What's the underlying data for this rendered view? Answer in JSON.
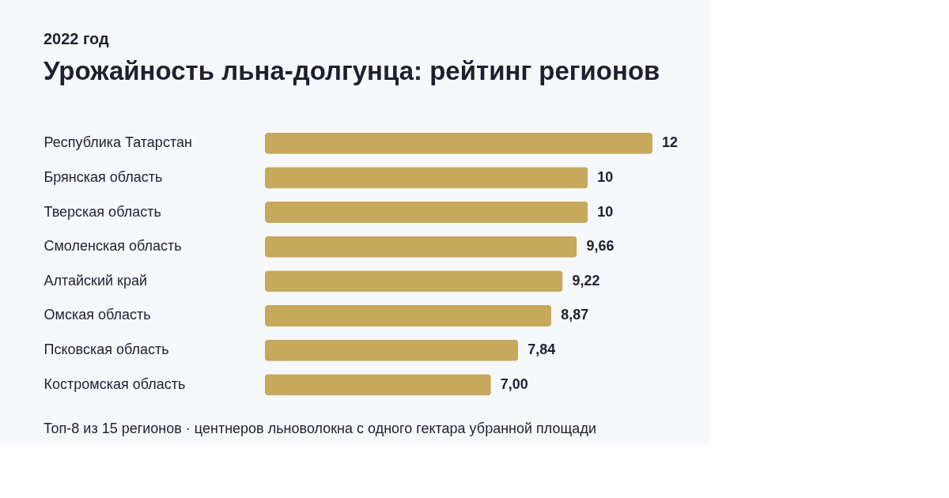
{
  "chart_data": {
    "type": "bar",
    "orientation": "horizontal",
    "title": "Урожайность льна-долгунца: рейтинг регионов",
    "subtitle": "2022 год",
    "categories": [
      "Республика Татарстан",
      "Брянская область",
      "Тверская область",
      "Смоленская область",
      "Алтайский край",
      "Омская область",
      "Псковская область",
      "Костромская область"
    ],
    "values": [
      12,
      10,
      10,
      9.66,
      9.22,
      8.87,
      7.84,
      7.0
    ],
    "value_labels": [
      "12",
      "10",
      "10",
      "9,66",
      "9,22",
      "8,87",
      "7,84",
      "7,00"
    ],
    "color": "#c6a95c",
    "grid": false,
    "annotations": [
      "Топ-8 из 15 регионов · центнеров льноволокна с одного гектара убранной площади"
    ]
  }
}
